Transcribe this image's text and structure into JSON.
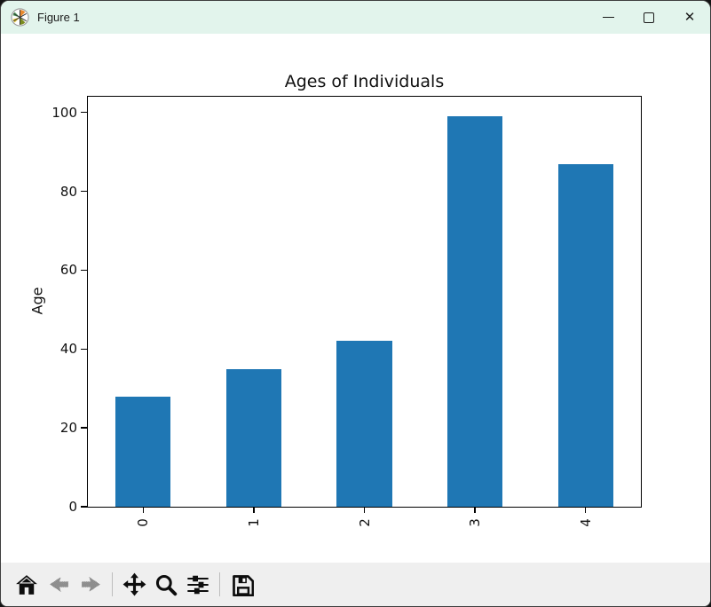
{
  "window": {
    "title": "Figure 1",
    "backdrop_color": "#141414",
    "titlebar_color": "#e2f4ec",
    "icons": {
      "app": "matplotlib-logo",
      "minimize": "thin-dash",
      "maximize": "outline-square",
      "close": "✕"
    }
  },
  "toolbar": {
    "background": "#efefef",
    "buttons": [
      {
        "name": "home",
        "enabled": true
      },
      {
        "name": "back",
        "enabled": false
      },
      {
        "name": "forward",
        "enabled": false
      },
      {
        "name": "pan",
        "enabled": true
      },
      {
        "name": "zoom-to-rect",
        "enabled": true
      },
      {
        "name": "configure-subplots",
        "enabled": true
      },
      {
        "name": "save",
        "enabled": true
      }
    ]
  },
  "chart_data": {
    "type": "bar",
    "title": "Ages of Individuals",
    "xlabel": "",
    "ylabel": "Age",
    "categories": [
      "0",
      "1",
      "2",
      "3",
      "4"
    ],
    "values": [
      28,
      35,
      42,
      99,
      87
    ],
    "yticks": [
      0,
      20,
      40,
      60,
      80,
      100
    ],
    "ylim": [
      0,
      104
    ],
    "bar_color": "#1f77b4",
    "bar_width_fraction": 0.5,
    "xtick_rotation": 90,
    "grid": false,
    "legend": null
  }
}
